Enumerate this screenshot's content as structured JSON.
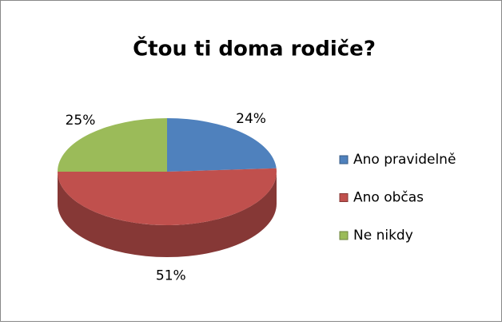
{
  "chart_data": {
    "type": "pie",
    "title": "Čtou ti doma rodiče?",
    "categories": [
      "Ano pravidelně",
      "Ano občas",
      "Ne nikdy"
    ],
    "values": [
      24,
      51,
      25
    ],
    "value_labels": [
      "24%",
      "51%",
      "25%"
    ],
    "colors": [
      "#4f81bd",
      "#c0504d",
      "#9bbb59"
    ],
    "legend": "right"
  }
}
